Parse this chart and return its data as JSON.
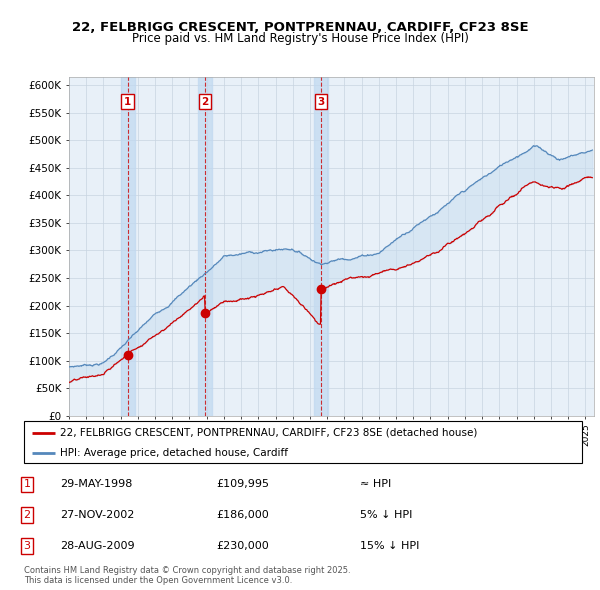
{
  "title1": "22, FELBRIGG CRESCENT, PONTPRENNAU, CARDIFF, CF23 8SE",
  "title2": "Price paid vs. HM Land Registry's House Price Index (HPI)",
  "ylabel_ticks": [
    "£0",
    "£50K",
    "£100K",
    "£150K",
    "£200K",
    "£250K",
    "£300K",
    "£350K",
    "£400K",
    "£450K",
    "£500K",
    "£550K",
    "£600K"
  ],
  "ylim": [
    0,
    600000
  ],
  "xlim_start": 1995.0,
  "xlim_end": 2025.5,
  "purchase_events": [
    {
      "label": "1",
      "year": 1998.41,
      "price": 109995,
      "date": "29-MAY-1998",
      "hpi_rel": "≈ HPI"
    },
    {
      "label": "2",
      "year": 2002.9,
      "price": 186000,
      "date": "27-NOV-2002",
      "hpi_rel": "5% ↓ HPI"
    },
    {
      "label": "3",
      "year": 2009.65,
      "price": 230000,
      "date": "28-AUG-2009",
      "hpi_rel": "15% ↓ HPI"
    }
  ],
  "legend_line1": "22, FELBRIGG CRESCENT, PONTPRENNAU, CARDIFF, CF23 8SE (detached house)",
  "legend_line2": "HPI: Average price, detached house, Cardiff",
  "footnote": "Contains HM Land Registry data © Crown copyright and database right 2025.\nThis data is licensed under the Open Government Licence v3.0.",
  "red_color": "#cc0000",
  "blue_color": "#5588bb",
  "fill_color": "#ddeeff",
  "bg_color": "#e8f0f8",
  "box_color": "#cc0000",
  "grid_color": "#c8d4e0",
  "background_color": "#ffffff"
}
